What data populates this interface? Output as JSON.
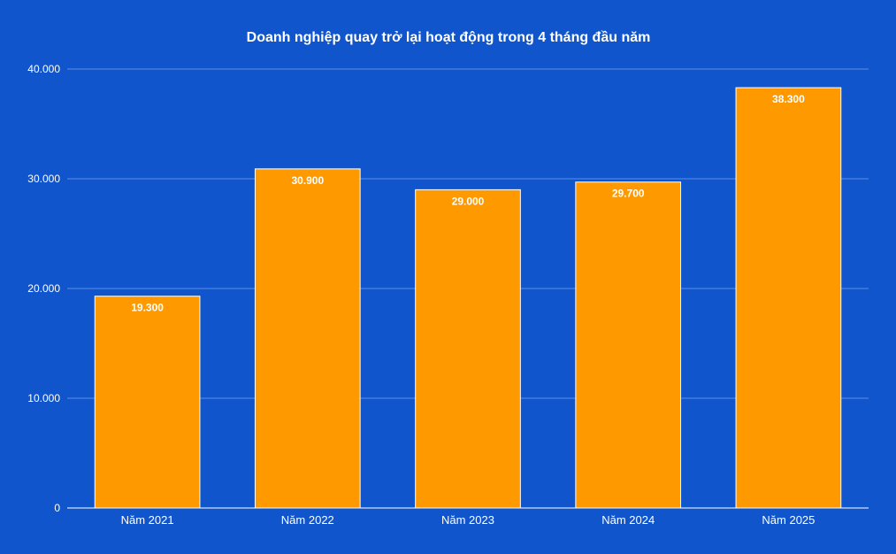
{
  "chart_data": {
    "type": "bar",
    "title": "Doanh nghiệp quay trở lại hoạt động trong 4 tháng đầu năm",
    "xlabel": "",
    "ylabel": "",
    "categories": [
      "Năm 2021",
      "Năm 2022",
      "Năm 2023",
      "Năm 2024",
      "Năm 2025"
    ],
    "values": [
      19300,
      30900,
      29000,
      29700,
      38300
    ],
    "value_labels": [
      "19.300",
      "30.900",
      "29.000",
      "29.700",
      "38.300"
    ],
    "ylim": [
      0,
      40000
    ],
    "yticks": [
      0,
      10000,
      20000,
      30000,
      40000
    ],
    "ytick_labels": [
      "0",
      "10.000",
      "20.000",
      "30.000",
      "40.000"
    ],
    "grid": true,
    "legend": "none",
    "colors": {
      "background": "#1155cc",
      "bar": "#ff9900",
      "bar_border": "#ffffff",
      "gridline": "#5b8ee6",
      "axis": "#ffffff",
      "text": "#ffffff"
    }
  }
}
